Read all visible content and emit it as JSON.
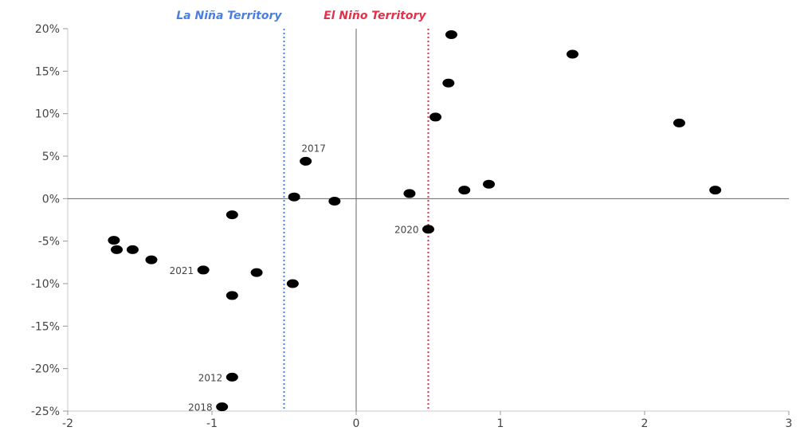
{
  "chart_data": {
    "type": "scatter",
    "title": "",
    "xlabel": "",
    "ylabel": "",
    "xlim": [
      -2,
      3
    ],
    "ylim": [
      -25,
      20
    ],
    "x_ticks": [
      {
        "value": -2,
        "label": "-2"
      },
      {
        "value": -1,
        "label": "-1"
      },
      {
        "value": 0,
        "label": "0"
      },
      {
        "value": 1,
        "label": "1"
      },
      {
        "value": 2,
        "label": "2"
      },
      {
        "value": 3,
        "label": "3"
      }
    ],
    "y_ticks": [
      {
        "value": 20,
        "label": "20%"
      },
      {
        "value": 15,
        "label": "15%"
      },
      {
        "value": 10,
        "label": "10%"
      },
      {
        "value": 5,
        "label": "5%"
      },
      {
        "value": 0,
        "label": "0%"
      },
      {
        "value": -5,
        "label": "-5%"
      },
      {
        "value": -10,
        "label": "-10%"
      },
      {
        "value": -15,
        "label": "-15%"
      },
      {
        "value": -20,
        "label": "-20%"
      },
      {
        "value": -25,
        "label": "-25%"
      }
    ],
    "grid": false,
    "reference_lines": [
      {
        "orientation": "vertical",
        "x": -0.5,
        "label": "La Niña Territory",
        "color": "#4a7fe0",
        "style": "dotted"
      },
      {
        "orientation": "vertical",
        "x": 0.5,
        "label": "El Niño Territory",
        "color": "#e0324a",
        "style": "dotted"
      }
    ],
    "axis_lines": {
      "x0": true,
      "y0": true,
      "color": "#666666"
    },
    "point_color": "#000000",
    "points": [
      {
        "x": 0.66,
        "y": 19.3,
        "label": ""
      },
      {
        "x": 1.5,
        "y": 17.0,
        "label": ""
      },
      {
        "x": 0.64,
        "y": 13.6,
        "label": ""
      },
      {
        "x": 0.55,
        "y": 9.6,
        "label": ""
      },
      {
        "x": 2.24,
        "y": 8.9,
        "label": ""
      },
      {
        "x": 2.49,
        "y": 1.0,
        "label": ""
      },
      {
        "x": 0.92,
        "y": 1.7,
        "label": ""
      },
      {
        "x": 0.75,
        "y": 1.0,
        "label": ""
      },
      {
        "x": 0.37,
        "y": 0.6,
        "label": ""
      },
      {
        "x": 0.5,
        "y": -3.6,
        "label": "2020"
      },
      {
        "x": -0.35,
        "y": 4.4,
        "label": "2017"
      },
      {
        "x": -0.43,
        "y": 0.2,
        "label": ""
      },
      {
        "x": -0.15,
        "y": -0.3,
        "label": ""
      },
      {
        "x": -0.86,
        "y": -1.9,
        "label": ""
      },
      {
        "x": -1.68,
        "y": -4.9,
        "label": ""
      },
      {
        "x": -1.66,
        "y": -6.0,
        "label": ""
      },
      {
        "x": -1.55,
        "y": -6.0,
        "label": ""
      },
      {
        "x": -1.42,
        "y": -7.2,
        "label": ""
      },
      {
        "x": -1.06,
        "y": -8.4,
        "label": "2021"
      },
      {
        "x": -0.69,
        "y": -8.7,
        "label": ""
      },
      {
        "x": -0.44,
        "y": -10.0,
        "label": ""
      },
      {
        "x": -0.86,
        "y": -11.4,
        "label": ""
      },
      {
        "x": -0.86,
        "y": -21.0,
        "label": "2012"
      },
      {
        "x": -0.93,
        "y": -24.5,
        "label": "2018"
      }
    ]
  }
}
